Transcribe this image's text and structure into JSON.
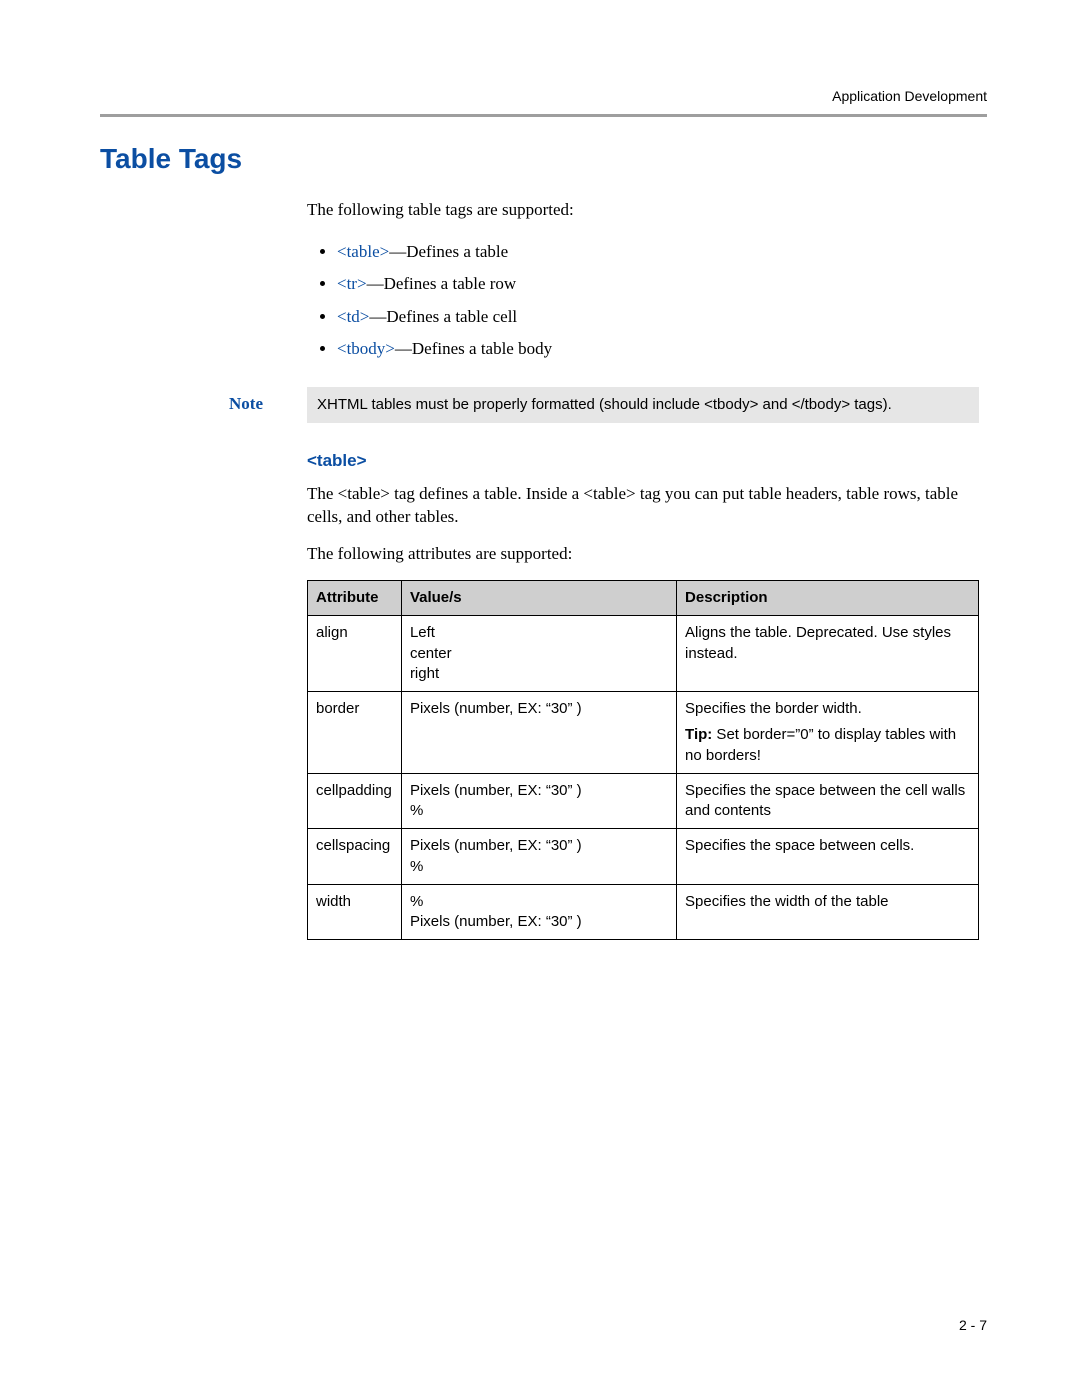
{
  "header": {
    "section": "Application Development"
  },
  "title": "Table Tags",
  "intro": "The following table tags are supported:",
  "bullets": [
    {
      "tag": "<table>",
      "desc": "—Defines a table"
    },
    {
      "tag": "<tr>",
      "desc": "—Defines a table row"
    },
    {
      "tag": "<td>",
      "desc": "—Defines a table cell"
    },
    {
      "tag": "<tbody>",
      "desc": "—Defines a table body"
    }
  ],
  "note": {
    "label": "Note",
    "text": "XHTML tables must be properly formatted (should include <tbody> and </tbody> tags)."
  },
  "table_section": {
    "heading": "<table>",
    "para1": "The <table> tag defines a table. Inside a <table> tag you can put table headers, table rows, table cells, and other tables.",
    "para2": "The following attributes are supported:"
  },
  "attr_table": {
    "columns": [
      "Attribute",
      "Value/s",
      "Description"
    ],
    "col_widths_pct": [
      14,
      41,
      45
    ],
    "header_bg": "#cfcfcf",
    "border_color": "#000000",
    "rows": [
      {
        "attribute": "align",
        "values": "Left\ncenter\nright",
        "description": [
          {
            "text": "Aligns the table. Deprecated. Use styles instead."
          }
        ]
      },
      {
        "attribute": "border",
        "values": "Pixels (number, EX: “30” )",
        "description": [
          {
            "text": "Specifies the border width."
          },
          {
            "tip_label": "Tip:",
            "text": " Set border=”0” to display tables with no borders!"
          }
        ]
      },
      {
        "attribute": "cellpadding",
        "values": "Pixels (number, EX: “30” )\n%",
        "description": [
          {
            "text": "Specifies the space between the cell walls and contents"
          }
        ]
      },
      {
        "attribute": "cellspacing",
        "values": "Pixels (number, EX: “30” )\n%",
        "description": [
          {
            "text": "Specifies the space between cells."
          }
        ]
      },
      {
        "attribute": "width",
        "values": "%\nPixels (number, EX: “30” )",
        "description": [
          {
            "text": "Specifies the width of the table"
          }
        ]
      }
    ]
  },
  "footer": {
    "page": "2 - 7"
  },
  "colors": {
    "accent": "#0b4ea2",
    "rule": "#9e9e9e",
    "note_bg": "#e6e6e6"
  }
}
